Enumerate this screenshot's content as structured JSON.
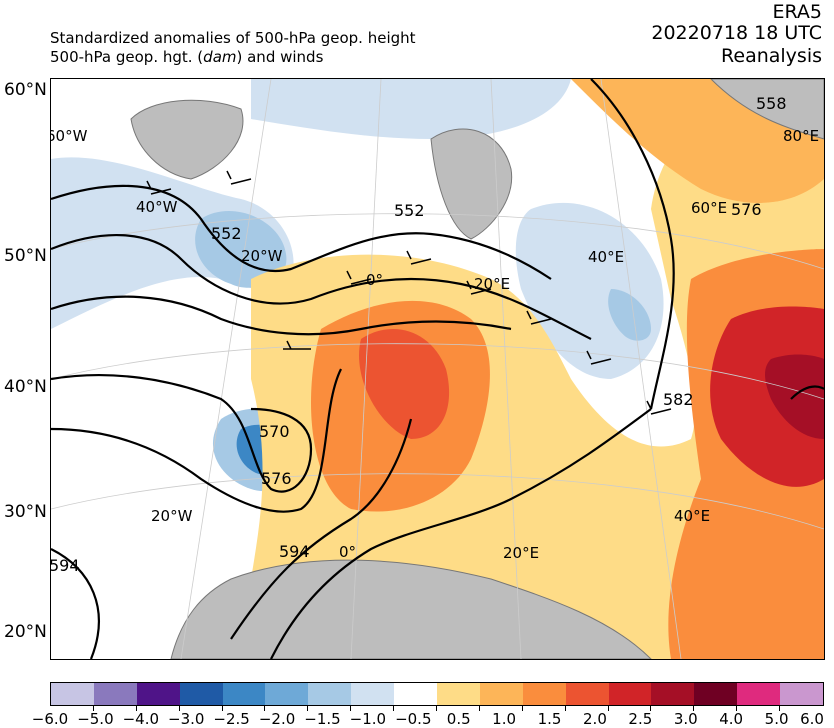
{
  "header": {
    "line1": "Standardized anomalies of 500-hPa geop. height",
    "line2_prefix": "500-hPa geop. hgt. (",
    "line2_unit": "dam",
    "line2_suffix": ") and winds",
    "dataset": "ERA5",
    "datetime": "20220718 18 UTC",
    "product": "Reanalysis"
  },
  "lat_labels": [
    "60°N",
    "50°N",
    "40°N",
    "30°N",
    "20°N"
  ],
  "lon_labels_top": [
    "60°W",
    "40°W",
    "20°W",
    "0°",
    "20°E",
    "40°E",
    "60°E",
    "80°E"
  ],
  "lon_labels_bottom": [
    "20°W",
    "0°",
    "20°E",
    "40°E"
  ],
  "contour_labels": [
    "552",
    "552",
    "570",
    "576",
    "582",
    "594",
    "594",
    "576",
    "558"
  ],
  "colorbar": {
    "colors": [
      "#c7c5e4",
      "#8a79bd",
      "#4f1488",
      "#1f5aa6",
      "#3c87c5",
      "#6ea9d7",
      "#a6c9e5",
      "#d1e1f1",
      "#ffffff",
      "#fedc87",
      "#fdb558",
      "#fa8d3d",
      "#ec5431",
      "#d12428",
      "#a50f26",
      "#6f0023",
      "#df2a7e",
      "#ca97cf"
    ],
    "tick_labels": [
      "−6.0",
      "−5.0",
      "−4.0",
      "−3.0",
      "−2.5",
      "−2.0",
      "−1.5",
      "−1.0",
      "−0.5",
      "0.5",
      "1.0",
      "1.5",
      "2.0",
      "2.5",
      "3.0",
      "4.0",
      "5.0",
      "6.0"
    ]
  }
}
